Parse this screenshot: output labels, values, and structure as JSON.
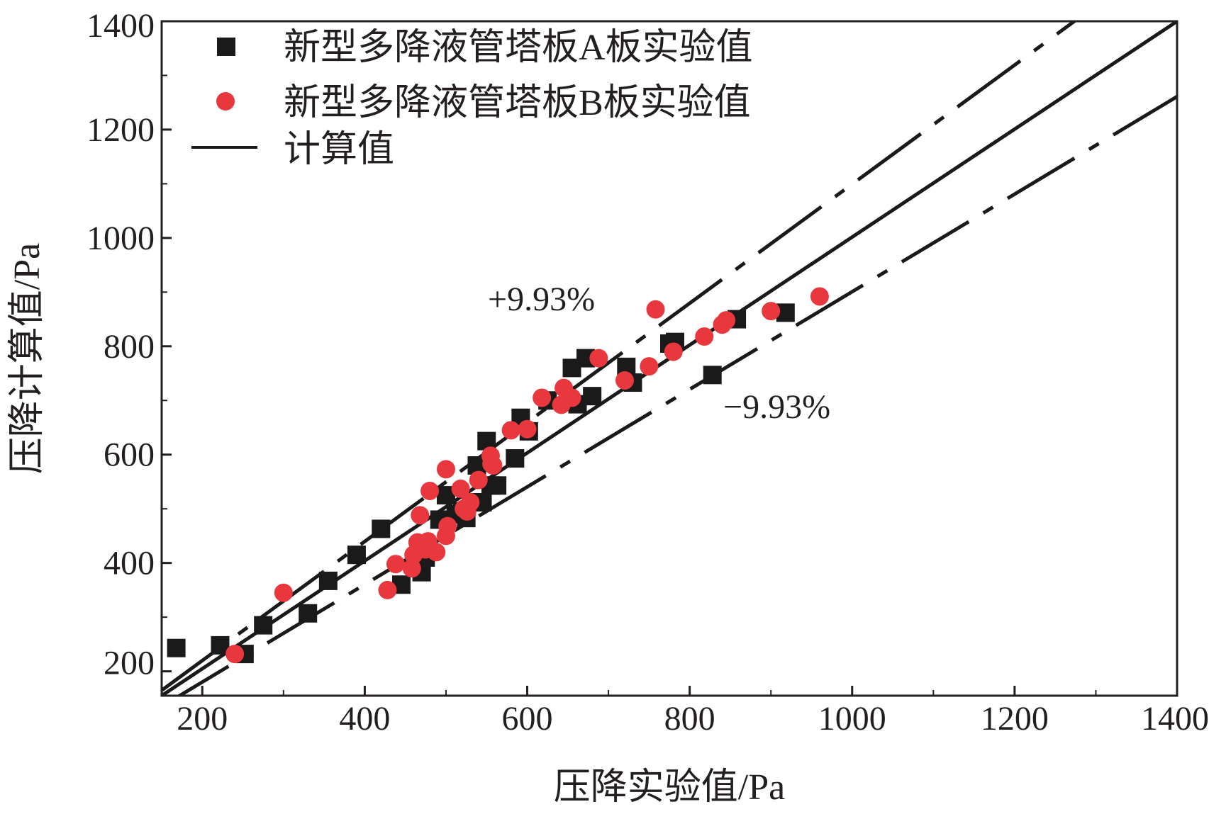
{
  "chart_data": {
    "type": "scatter",
    "xlabel": "压降实验值/Pa",
    "ylabel": "压降计算值/Pa",
    "xlim": [
      150,
      1400
    ],
    "ylim": [
      155,
      1400
    ],
    "xticks": [
      "200",
      "400",
      "600",
      "800",
      "1000",
      "1200",
      "1400"
    ],
    "yticks": [
      "200",
      "400",
      "600",
      "800",
      "1000",
      "1200",
      "1400"
    ],
    "grid": false,
    "legend_position": "top-left",
    "series": [
      {
        "name": "新型多降液管塔板A板实验值",
        "marker": "square",
        "color": "#1a1a1a",
        "points": [
          [
            168,
            243
          ],
          [
            222,
            248
          ],
          [
            252,
            232
          ],
          [
            275,
            285
          ],
          [
            330,
            307
          ],
          [
            355,
            367
          ],
          [
            390,
            415
          ],
          [
            420,
            463
          ],
          [
            445,
            360
          ],
          [
            470,
            383
          ],
          [
            475,
            410
          ],
          [
            492,
            480
          ],
          [
            500,
            525
          ],
          [
            512,
            490
          ],
          [
            520,
            495
          ],
          [
            525,
            483
          ],
          [
            532,
            512
          ],
          [
            538,
            580
          ],
          [
            545,
            512
          ],
          [
            550,
            625
          ],
          [
            555,
            543
          ],
          [
            563,
            543
          ],
          [
            585,
            593
          ],
          [
            592,
            668
          ],
          [
            602,
            643
          ],
          [
            625,
            700
          ],
          [
            655,
            760
          ],
          [
            662,
            693
          ],
          [
            672,
            778
          ],
          [
            680,
            708
          ],
          [
            722,
            762
          ],
          [
            730,
            733
          ],
          [
            775,
            805
          ],
          [
            782,
            808
          ],
          [
            828,
            747
          ],
          [
            858,
            850
          ],
          [
            918,
            862
          ]
        ]
      },
      {
        "name": "新型多降液管塔板B板实验值",
        "marker": "circle",
        "color": "#e8383d",
        "points": [
          [
            240,
            232
          ],
          [
            300,
            345
          ],
          [
            428,
            350
          ],
          [
            438,
            398
          ],
          [
            458,
            390
          ],
          [
            460,
            415
          ],
          [
            465,
            438
          ],
          [
            468,
            488
          ],
          [
            475,
            425
          ],
          [
            478,
            440
          ],
          [
            480,
            533
          ],
          [
            488,
            420
          ],
          [
            500,
            450
          ],
          [
            500,
            573
          ],
          [
            502,
            468
          ],
          [
            518,
            537
          ],
          [
            522,
            500
          ],
          [
            526,
            495
          ],
          [
            530,
            512
          ],
          [
            540,
            553
          ],
          [
            555,
            598
          ],
          [
            556,
            583
          ],
          [
            558,
            580
          ],
          [
            580,
            645
          ],
          [
            600,
            647
          ],
          [
            618,
            705
          ],
          [
            642,
            692
          ],
          [
            645,
            723
          ],
          [
            655,
            705
          ],
          [
            688,
            778
          ],
          [
            720,
            737
          ],
          [
            750,
            763
          ],
          [
            758,
            868
          ],
          [
            780,
            790
          ],
          [
            818,
            818
          ],
          [
            840,
            840
          ],
          [
            845,
            848
          ],
          [
            900,
            865
          ],
          [
            960,
            892
          ]
        ]
      },
      {
        "name": "计算值",
        "type": "line",
        "style": "solid",
        "color": "#1a1a1a",
        "x": [
          150,
          1400
        ],
        "y": [
          155,
          1400
        ]
      },
      {
        "name": "+9.93%",
        "type": "line",
        "style": "dash-dot",
        "color": "#1a1a1a",
        "slope": 1.0993,
        "intercept": 0
      },
      {
        "name": "−9.93%",
        "type": "line",
        "style": "dash-dot",
        "color": "#1a1a1a",
        "slope": 0.9007,
        "intercept": 0
      }
    ],
    "annotations": [
      {
        "text": "+9.93%",
        "x": 710,
        "y": 880
      },
      {
        "text": "−9.93%",
        "x": 850,
        "y": 698
      }
    ]
  }
}
